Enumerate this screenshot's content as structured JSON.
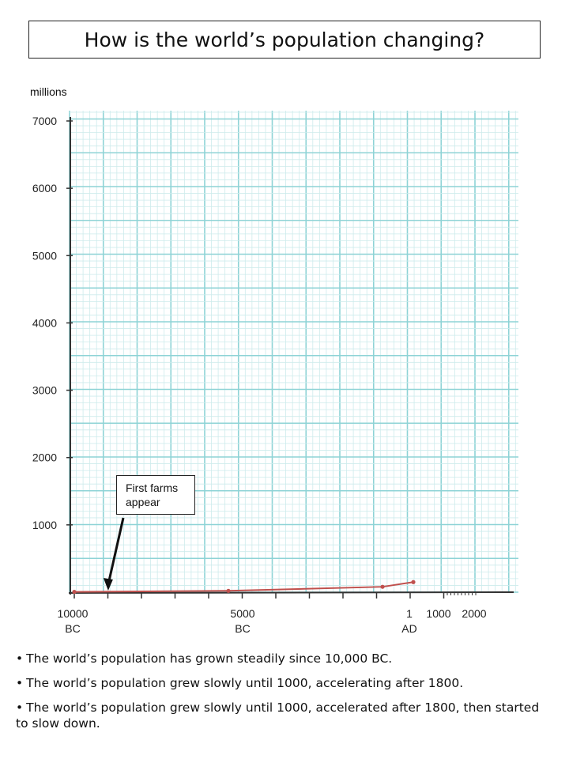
{
  "title": "How is the world’s population changing?",
  "unit_label": "millions",
  "callout": {
    "line1": "First farms",
    "line2": "appear"
  },
  "chart_data": {
    "type": "line",
    "ylabel": "millions",
    "ylim": [
      0,
      7000
    ],
    "yticks": [
      1000,
      2000,
      3000,
      4000,
      5000,
      6000,
      7000
    ],
    "xlim": [
      -10000,
      2000
    ],
    "xtick_labels": [
      {
        "x": -10000,
        "line1": "10000",
        "line2": "BC"
      },
      {
        "x": -5000,
        "line1": "5000",
        "line2": "BC"
      },
      {
        "x": 1,
        "line1": "1",
        "line2": "AD"
      },
      {
        "x": 1000,
        "line1": "1000",
        "line2": ""
      },
      {
        "x": 2000,
        "line1": "2000",
        "line2": ""
      }
    ],
    "series": [
      {
        "color": "#c0504d",
        "points": [
          {
            "x": -10000,
            "y": 5
          },
          {
            "x": -5000,
            "y": 20
          },
          {
            "x": 1,
            "y": 80
          },
          {
            "x": 1000,
            "y": 150
          }
        ]
      }
    ],
    "annotation": {
      "text": "First farms appear",
      "x": -8900
    }
  },
  "statements": [
    "The world’s population has grown steadily since 10,000 BC.",
    "The world’s population grew slowly until 1000, accelerating after 1800.",
    "The world’s population grew slowly until 1000, accelerated after 1800, then started to slow down."
  ]
}
